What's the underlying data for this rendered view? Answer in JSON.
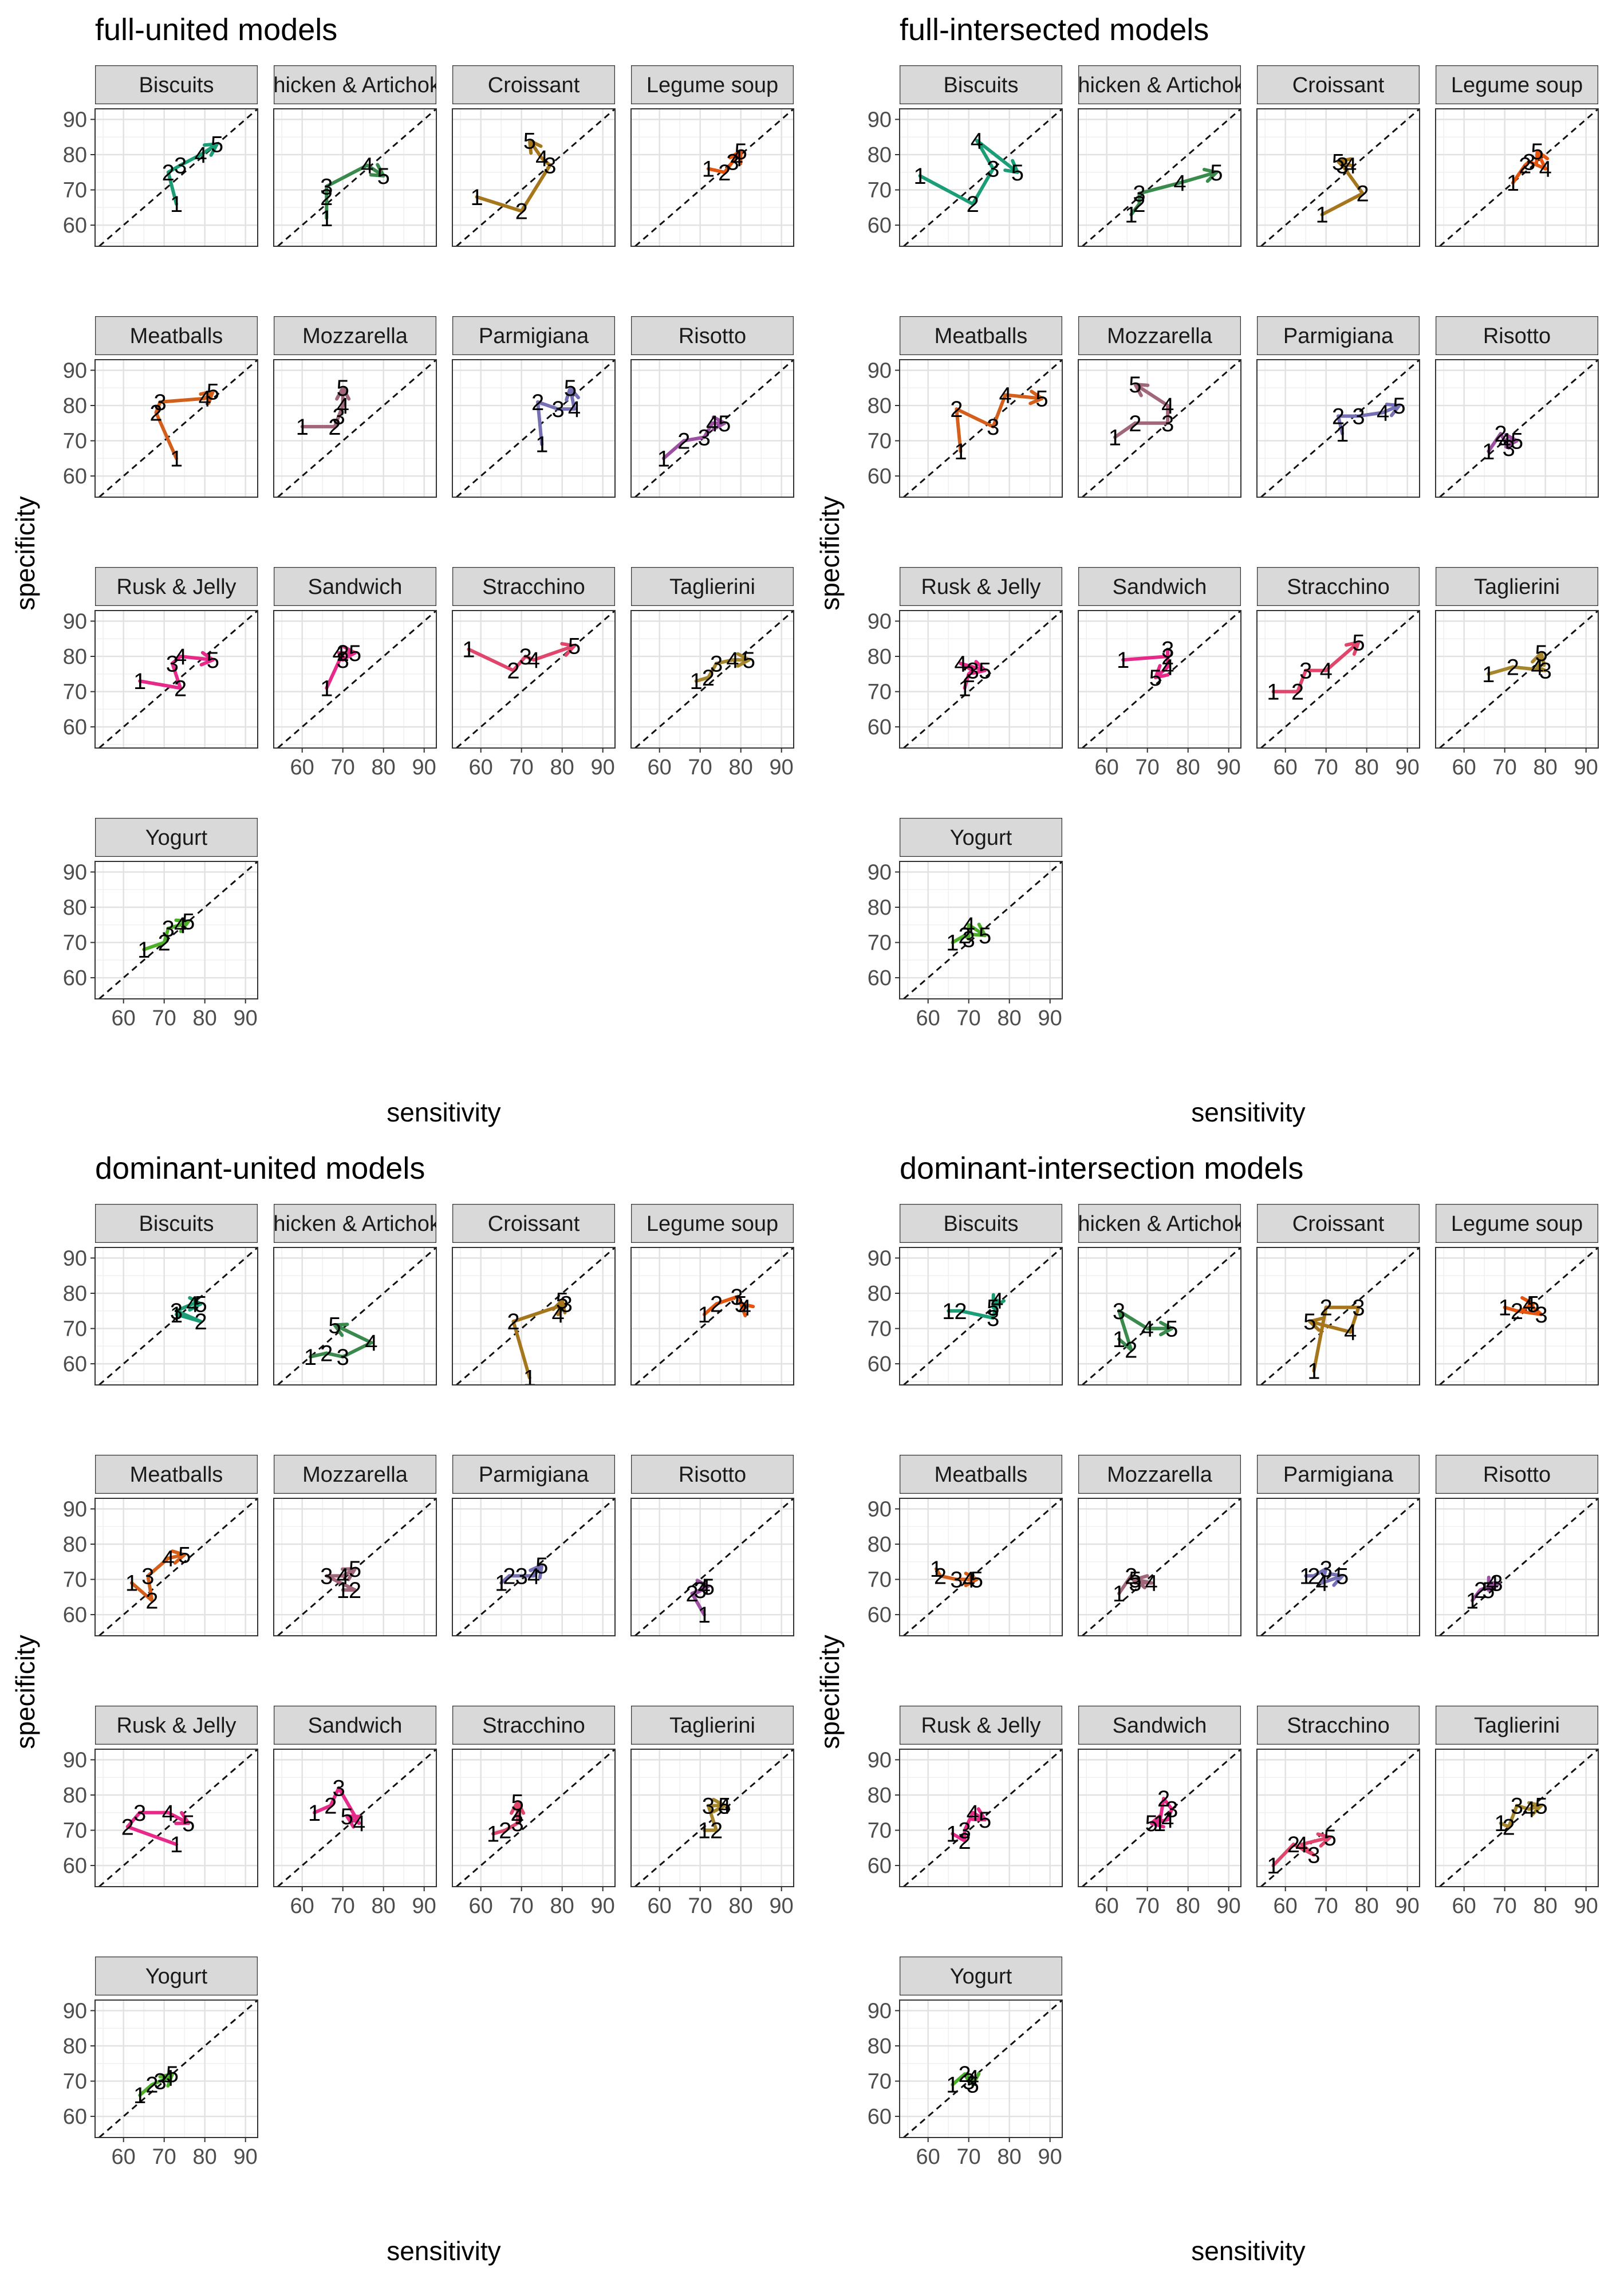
{
  "chart_data": {
    "type": "line",
    "xlabel": "sensitivity",
    "ylabel": "specificity",
    "xlim": [
      53,
      93
    ],
    "ylim": [
      54,
      93
    ],
    "x_ticks": [
      60,
      70,
      80,
      90
    ],
    "y_ticks": [
      60,
      70,
      80,
      90
    ],
    "point_labels": [
      "1",
      "2",
      "3",
      "4",
      "5"
    ],
    "facet_labels": [
      "Biscuits",
      "Chicken & Artichoke",
      "Croissant",
      "Legume soup",
      "Meatballs",
      "Mozzarella",
      "Parmigiana",
      "Risotto",
      "Rusk & Jelly",
      "Sandwich",
      "Stracchino",
      "Taglierini",
      "Yogurt"
    ],
    "reference_line": "y = x (dashed)",
    "colors": {
      "Biscuits": "#1b9e77",
      "Chicken & Artichoke": "#3a8a4d",
      "Croissant": "#a6761d",
      "Legume soup": "#e6550d",
      "Meatballs": "#d45f1b",
      "Mozzarella": "#a0667a",
      "Parmigiana": "#7570b3",
      "Risotto": "#9d4fa3",
      "Rusk & Jelly": "#e7298a",
      "Sandwich": "#e7298a",
      "Stracchino": "#e0456b",
      "Taglierini": "#a6862d",
      "Yogurt": "#4daf29"
    },
    "panels": [
      {
        "title": "full-united models",
        "facets": [
          {
            "name": "Biscuits",
            "x": [
              73,
              71,
              74,
              79,
              83
            ],
            "y": [
              66,
              75,
              77,
              80,
              83
            ]
          },
          {
            "name": "Chicken & Artichoke",
            "x": [
              66,
              66,
              66,
              76,
              80
            ],
            "y": [
              62,
              68,
              71,
              77,
              74
            ]
          },
          {
            "name": "Croissant",
            "x": [
              59,
              70,
              77,
              75,
              72
            ],
            "y": [
              68,
              64,
              77,
              79,
              84
            ]
          },
          {
            "name": "Legume soup",
            "x": [
              72,
              76,
              78,
              79,
              80
            ],
            "y": [
              76,
              75,
              78,
              79,
              81
            ]
          },
          {
            "name": "Meatballs",
            "x": [
              73,
              68,
              69,
              80,
              82
            ],
            "y": [
              65,
              78,
              81,
              82,
              84
            ]
          },
          {
            "name": "Mozzarella",
            "x": [
              60,
              68,
              69,
              70,
              70
            ],
            "y": [
              74,
              74,
              77,
              80,
              85
            ]
          },
          {
            "name": "Parmigiana",
            "x": [
              75,
              74,
              79,
              83,
              82
            ],
            "y": [
              69,
              81,
              79,
              79,
              85
            ]
          },
          {
            "name": "Risotto",
            "x": [
              61,
              66,
              71,
              73,
              76
            ],
            "y": [
              65,
              70,
              71,
              75,
              75
            ]
          },
          {
            "name": "Rusk & Jelly",
            "x": [
              64,
              74,
              72,
              74,
              82
            ],
            "y": [
              73,
              71,
              78,
              80,
              79
            ]
          },
          {
            "name": "Sandwich",
            "x": [
              66,
              70,
              70,
              69,
              73
            ],
            "y": [
              71,
              81,
              79,
              81,
              81
            ]
          },
          {
            "name": "Stracchino",
            "x": [
              57,
              68,
              71,
              73,
              83
            ],
            "y": [
              82,
              76,
              80,
              79,
              83
            ]
          },
          {
            "name": "Taglierini",
            "x": [
              69,
              72,
              74,
              78,
              82
            ],
            "y": [
              73,
              74,
              78,
              79,
              79
            ]
          },
          {
            "name": "Yogurt",
            "x": [
              65,
              70,
              71,
              74,
              76
            ],
            "y": [
              68,
              70,
              74,
              75,
              76
            ]
          }
        ]
      },
      {
        "title": "full-intersected models",
        "facets": [
          {
            "name": "Biscuits",
            "x": [
              58,
              71,
              76,
              72,
              82
            ],
            "y": [
              74,
              66,
              76,
              84,
              75
            ]
          },
          {
            "name": "Chicken & Artichoke",
            "x": [
              66,
              68,
              68,
              78,
              87
            ],
            "y": [
              63,
              66,
              69,
              72,
              75
            ]
          },
          {
            "name": "Croissant",
            "x": [
              69,
              79,
              74,
              76,
              73
            ],
            "y": [
              63,
              69,
              77,
              77,
              78
            ]
          },
          {
            "name": "Legume soup",
            "x": [
              72,
              75,
              76,
              80,
              78
            ],
            "y": [
              72,
              77,
              78,
              76,
              81
            ]
          },
          {
            "name": "Meatballs",
            "x": [
              68,
              67,
              76,
              79,
              88
            ],
            "y": [
              67,
              79,
              74,
              83,
              82
            ]
          },
          {
            "name": "Mozzarella",
            "x": [
              62,
              67,
              75,
              75,
              67
            ],
            "y": [
              71,
              75,
              75,
              80,
              86
            ]
          },
          {
            "name": "Parmigiana",
            "x": [
              74,
              73,
              78,
              84,
              88
            ],
            "y": [
              72,
              77,
              77,
              78,
              80
            ]
          },
          {
            "name": "Risotto",
            "x": [
              66,
              69,
              71,
              70,
              73
            ],
            "y": [
              67,
              72,
              68,
              70,
              70
            ]
          },
          {
            "name": "Rusk & Jelly",
            "x": [
              69,
              70,
              71,
              68,
              74
            ],
            "y": [
              71,
              75,
              76,
              78,
              76
            ]
          },
          {
            "name": "Sandwich",
            "x": [
              64,
              75,
              75,
              75,
              72
            ],
            "y": [
              79,
              80,
              82,
              77,
              74
            ]
          },
          {
            "name": "Stracchino",
            "x": [
              57,
              63,
              65,
              70,
              78
            ],
            "y": [
              70,
              70,
              76,
              76,
              84
            ]
          },
          {
            "name": "Taglierini",
            "x": [
              66,
              72,
              80,
              78,
              79
            ],
            "y": [
              75,
              77,
              76,
              77,
              81
            ]
          },
          {
            "name": "Yogurt",
            "x": [
              66,
              69,
              70,
              70,
              74
            ],
            "y": [
              70,
              72,
              71,
              75,
              72
            ]
          }
        ]
      },
      {
        "title": "dominant-united models",
        "facets": [
          {
            "name": "Biscuits",
            "x": [
              73,
              79,
              73,
              77,
              79
            ],
            "y": [
              74,
              72,
              75,
              77,
              77
            ]
          },
          {
            "name": "Chicken & Artichoke",
            "x": [
              62,
              66,
              70,
              77,
              68
            ],
            "y": [
              62,
              63,
              62,
              66,
              71
            ]
          },
          {
            "name": "Croissant",
            "x": [
              72,
              68,
              81,
              79,
              80
            ],
            "y": [
              56,
              72,
              77,
              74,
              78
            ]
          },
          {
            "name": "Legume soup",
            "x": [
              71,
              74,
              79,
              81,
              80
            ],
            "y": [
              74,
              77,
              79,
              76,
              77
            ]
          },
          {
            "name": "Meatballs",
            "x": [
              62,
              67,
              66,
              71,
              75
            ],
            "y": [
              69,
              64,
              71,
              76,
              77
            ]
          },
          {
            "name": "Mozzarella",
            "x": [
              70,
              73,
              66,
              70,
              73
            ],
            "y": [
              67,
              67,
              71,
              71,
              73
            ]
          },
          {
            "name": "Parmigiana",
            "x": [
              65,
              67,
              70,
              73,
              75
            ],
            "y": [
              69,
              71,
              71,
              71,
              74
            ]
          },
          {
            "name": "Risotto",
            "x": [
              71,
              68,
              70,
              71,
              72
            ],
            "y": [
              60,
              66,
              67,
              68,
              68
            ]
          },
          {
            "name": "Rusk & Jelly",
            "x": [
              73,
              61,
              64,
              71,
              76
            ],
            "y": [
              66,
              71,
              75,
              75,
              72
            ]
          },
          {
            "name": "Sandwich",
            "x": [
              63,
              67,
              69,
              74,
              71
            ],
            "y": [
              75,
              77,
              82,
              72,
              74
            ]
          },
          {
            "name": "Stracchino",
            "x": [
              63,
              66,
              69,
              69,
              69
            ],
            "y": [
              69,
              70,
              72,
              74,
              78
            ]
          },
          {
            "name": "Taglierini",
            "x": [
              71,
              74,
              72,
              76,
              76
            ],
            "y": [
              70,
              70,
              77,
              77,
              77
            ]
          },
          {
            "name": "Yogurt",
            "x": [
              64,
              67,
              69,
              71,
              72
            ],
            "y": [
              66,
              69,
              70,
              71,
              72
            ]
          }
        ]
      },
      {
        "title": "dominant-intersection models",
        "facets": [
          {
            "name": "Biscuits",
            "x": [
              65,
              68,
              76,
              77,
              76
            ],
            "y": [
              75,
              75,
              73,
              78,
              76
            ]
          },
          {
            "name": "Chicken & Artichoke",
            "x": [
              63,
              66,
              63,
              70,
              76
            ],
            "y": [
              67,
              64,
              75,
              70,
              70
            ]
          },
          {
            "name": "Croissant",
            "x": [
              67,
              70,
              78,
              76,
              66
            ],
            "y": [
              58,
              76,
              76,
              69,
              72
            ]
          },
          {
            "name": "Legume soup",
            "x": [
              70,
              73,
              79,
              76,
              77
            ],
            "y": [
              76,
              75,
              74,
              77,
              77
            ]
          },
          {
            "name": "Meatballs",
            "x": [
              62,
              63,
              67,
              70,
              72
            ],
            "y": [
              73,
              71,
              70,
              70,
              70
            ]
          },
          {
            "name": "Mozzarella",
            "x": [
              63,
              66,
              67,
              71,
              67
            ],
            "y": [
              66,
              71,
              69,
              69,
              70
            ]
          },
          {
            "name": "Parmigiana",
            "x": [
              65,
              67,
              70,
              69,
              74
            ],
            "y": [
              71,
              71,
              73,
              69,
              71
            ]
          },
          {
            "name": "Risotto",
            "x": [
              62,
              64,
              68,
              67,
              66
            ],
            "y": [
              64,
              67,
              69,
              69,
              67
            ]
          },
          {
            "name": "Rusk & Jelly",
            "x": [
              66,
              69,
              69,
              71,
              74
            ],
            "y": [
              69,
              67,
              70,
              75,
              73
            ]
          },
          {
            "name": "Sandwich",
            "x": [
              73,
              74,
              76,
              75,
              71
            ],
            "y": [
              72,
              79,
              76,
              73,
              72
            ]
          },
          {
            "name": "Stracchino",
            "x": [
              57,
              62,
              67,
              64,
              71
            ],
            "y": [
              60,
              66,
              63,
              66,
              68
            ]
          },
          {
            "name": "Taglierini",
            "x": [
              69,
              71,
              73,
              76,
              79
            ],
            "y": [
              72,
              71,
              77,
              76,
              77
            ]
          },
          {
            "name": "Yogurt",
            "x": [
              66,
              69,
              70,
              71,
              71
            ],
            "y": [
              69,
              72,
              70,
              71,
              69
            ]
          }
        ]
      }
    ]
  }
}
